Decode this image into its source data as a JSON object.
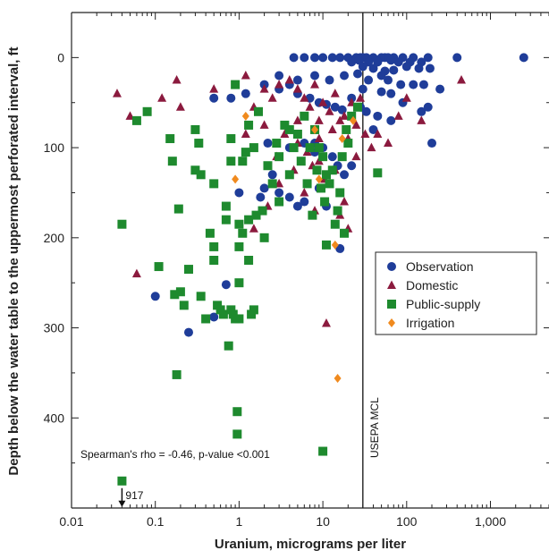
{
  "chart_data": {
    "type": "scatter",
    "xlabel": "Uranium, micrograms per liter",
    "ylabel": "Depth below the water table to the uppermost perforated interval, ft",
    "x_scale": "log",
    "xlim": [
      0.01,
      5000
    ],
    "ylim": [
      500,
      -50
    ],
    "x_ticks": [
      {
        "value": 0.01,
        "label": "0.01"
      },
      {
        "value": 0.1,
        "label": "0.1"
      },
      {
        "value": 1,
        "label": "1"
      },
      {
        "value": 10,
        "label": "10"
      },
      {
        "value": 100,
        "label": "100"
      },
      {
        "value": 1000,
        "label": "1,000"
      }
    ],
    "y_ticks": [
      {
        "value": 0,
        "label": "0"
      },
      {
        "value": 100,
        "label": "100"
      },
      {
        "value": 200,
        "label": "200"
      },
      {
        "value": 300,
        "label": "300"
      },
      {
        "value": 400,
        "label": "400"
      }
    ],
    "grid": false,
    "legend_position": "right-middle",
    "reference_line": {
      "x": 30,
      "label": "USEPA MCL"
    },
    "annotations": [
      {
        "text": "Spearman's rho = -0.46, p-value <0.001"
      },
      {
        "text": "917",
        "x": 0.04,
        "y": 470
      }
    ],
    "series": [
      {
        "name": "Observation",
        "marker": "circle",
        "color": "#1f3d99",
        "points": [
          [
            4.5,
            0
          ],
          [
            6,
            0
          ],
          [
            8,
            0
          ],
          [
            10,
            0
          ],
          [
            13,
            0
          ],
          [
            16,
            0
          ],
          [
            20,
            0
          ],
          [
            25,
            0
          ],
          [
            28,
            0
          ],
          [
            30,
            0
          ],
          [
            33,
            0
          ],
          [
            40,
            0
          ],
          [
            50,
            0
          ],
          [
            55,
            0
          ],
          [
            60,
            0
          ],
          [
            70,
            0
          ],
          [
            90,
            0
          ],
          [
            120,
            0
          ],
          [
            180,
            0
          ],
          [
            400,
            0
          ],
          [
            2500,
            0
          ],
          [
            22,
            5
          ],
          [
            27,
            3
          ],
          [
            35,
            5
          ],
          [
            45,
            5
          ],
          [
            65,
            3
          ],
          [
            80,
            5
          ],
          [
            110,
            5
          ],
          [
            150,
            5
          ],
          [
            30,
            10
          ],
          [
            40,
            12
          ],
          [
            55,
            15
          ],
          [
            70,
            14
          ],
          [
            100,
            10
          ],
          [
            140,
            12
          ],
          [
            190,
            12
          ],
          [
            250,
            35
          ],
          [
            3,
            20
          ],
          [
            5,
            25
          ],
          [
            8,
            20
          ],
          [
            12,
            25
          ],
          [
            18,
            20
          ],
          [
            26,
            18
          ],
          [
            35,
            25
          ],
          [
            50,
            20
          ],
          [
            60,
            25
          ],
          [
            85,
            30
          ],
          [
            120,
            30
          ],
          [
            160,
            30
          ],
          [
            4,
            30
          ],
          [
            30,
            35
          ],
          [
            50,
            38
          ],
          [
            65,
            40
          ],
          [
            2,
            30
          ],
          [
            3,
            35
          ],
          [
            5,
            40
          ],
          [
            7,
            45
          ],
          [
            9,
            50
          ],
          [
            11,
            52
          ],
          [
            14,
            55
          ],
          [
            17,
            58
          ],
          [
            22,
            45
          ],
          [
            28,
            55
          ],
          [
            33,
            60
          ],
          [
            45,
            65
          ],
          [
            65,
            70
          ],
          [
            90,
            50
          ],
          [
            150,
            60
          ],
          [
            2.2,
            95
          ],
          [
            4,
            100
          ],
          [
            6,
            95
          ],
          [
            8,
            105
          ],
          [
            10,
            100
          ],
          [
            13,
            110
          ],
          [
            15,
            120
          ],
          [
            18,
            130
          ],
          [
            22,
            120
          ],
          [
            200,
            95
          ],
          [
            180,
            55
          ],
          [
            40,
            80
          ],
          [
            2,
            145
          ],
          [
            3,
            150
          ],
          [
            4,
            155
          ],
          [
            5,
            165
          ],
          [
            6,
            160
          ],
          [
            9,
            145
          ],
          [
            11,
            165
          ],
          [
            2.5,
            130
          ],
          [
            1.8,
            155
          ],
          [
            1,
            150
          ],
          [
            0.5,
            45
          ],
          [
            0.8,
            45
          ],
          [
            1.2,
            40
          ],
          [
            0.1,
            265
          ],
          [
            0.25,
            305
          ],
          [
            0.7,
            252
          ],
          [
            0.5,
            288
          ],
          [
            8,
            95
          ],
          [
            16,
            212
          ]
        ]
      },
      {
        "name": "Domestic",
        "marker": "triangle",
        "color": "#8b1a3e",
        "points": [
          [
            0.035,
            40
          ],
          [
            0.05,
            65
          ],
          [
            0.06,
            240
          ],
          [
            0.12,
            45
          ],
          [
            0.18,
            25
          ],
          [
            0.2,
            55
          ],
          [
            0.5,
            35
          ],
          [
            1.2,
            20
          ],
          [
            1.5,
            55
          ],
          [
            2,
            35
          ],
          [
            2.5,
            45
          ],
          [
            3,
            30
          ],
          [
            4,
            25
          ],
          [
            5,
            35
          ],
          [
            6,
            45
          ],
          [
            7,
            55
          ],
          [
            8,
            30
          ],
          [
            9,
            70
          ],
          [
            10,
            50
          ],
          [
            12,
            60
          ],
          [
            14,
            40
          ],
          [
            16,
            70
          ],
          [
            18,
            65
          ],
          [
            20,
            90
          ],
          [
            22,
            50
          ],
          [
            25,
            75
          ],
          [
            28,
            45
          ],
          [
            32,
            85
          ],
          [
            38,
            100
          ],
          [
            45,
            85
          ],
          [
            60,
            95
          ],
          [
            80,
            65
          ],
          [
            100,
            45
          ],
          [
            150,
            70
          ],
          [
            450,
            25
          ],
          [
            2,
            75
          ],
          [
            3.5,
            85
          ],
          [
            5,
            95
          ],
          [
            6.5,
            105
          ],
          [
            7.5,
            120
          ],
          [
            9,
            115
          ],
          [
            10.5,
            135
          ],
          [
            12,
            140
          ],
          [
            14,
            125
          ],
          [
            16,
            175
          ],
          [
            18,
            160
          ],
          [
            20,
            190
          ],
          [
            1.5,
            190
          ],
          [
            2.2,
            165
          ],
          [
            11,
            295
          ],
          [
            3,
            140
          ],
          [
            4.5,
            125
          ],
          [
            6,
            150
          ],
          [
            8,
            170
          ],
          [
            1.2,
            85
          ],
          [
            2.8,
            110
          ],
          [
            13,
            80
          ],
          [
            25,
            110
          ],
          [
            5,
            70
          ],
          [
            9,
            90
          ]
        ]
      },
      {
        "name": "Public-supply",
        "marker": "square",
        "color": "#1e8a2e",
        "points": [
          [
            0.04,
            185
          ],
          [
            0.06,
            70
          ],
          [
            0.08,
            60
          ],
          [
            0.04,
            470
          ],
          [
            0.11,
            232
          ],
          [
            0.15,
            90
          ],
          [
            0.16,
            115
          ],
          [
            0.17,
            263
          ],
          [
            0.18,
            352
          ],
          [
            0.19,
            168
          ],
          [
            0.2,
            260
          ],
          [
            0.22,
            275
          ],
          [
            0.25,
            235
          ],
          [
            0.3,
            80
          ],
          [
            0.3,
            125
          ],
          [
            0.33,
            95
          ],
          [
            0.35,
            265
          ],
          [
            0.4,
            290
          ],
          [
            0.45,
            195
          ],
          [
            0.5,
            210
          ],
          [
            0.5,
            140
          ],
          [
            0.5,
            225
          ],
          [
            0.55,
            275
          ],
          [
            0.6,
            280
          ],
          [
            0.65,
            285
          ],
          [
            0.7,
            165
          ],
          [
            0.7,
            180
          ],
          [
            0.75,
            320
          ],
          [
            0.8,
            115
          ],
          [
            0.8,
            90
          ],
          [
            0.8,
            280
          ],
          [
            0.85,
            285
          ],
          [
            0.9,
            30
          ],
          [
            0.9,
            290
          ],
          [
            0.95,
            393
          ],
          [
            0.95,
            418
          ],
          [
            1,
            210
          ],
          [
            1,
            250
          ],
          [
            1,
            185
          ],
          [
            1,
            290
          ],
          [
            1.1,
            115
          ],
          [
            1.1,
            195
          ],
          [
            1.2,
            105
          ],
          [
            1.3,
            180
          ],
          [
            1.3,
            225
          ],
          [
            1.3,
            75
          ],
          [
            1.4,
            285
          ],
          [
            1.5,
            100
          ],
          [
            1.5,
            280
          ],
          [
            1.6,
            175
          ],
          [
            1.7,
            60
          ],
          [
            1.9,
            170
          ],
          [
            2,
            200
          ],
          [
            2.2,
            120
          ],
          [
            2.5,
            140
          ],
          [
            3,
            110
          ],
          [
            3,
            160
          ],
          [
            3.5,
            75
          ],
          [
            4,
            130
          ],
          [
            4.5,
            100
          ],
          [
            5,
            85
          ],
          [
            5.5,
            115
          ],
          [
            6,
            65
          ],
          [
            6.5,
            140
          ],
          [
            7,
            100
          ],
          [
            7.5,
            175
          ],
          [
            8,
            80
          ],
          [
            8.5,
            125
          ],
          [
            9,
            100
          ],
          [
            9.5,
            145
          ],
          [
            10,
            110
          ],
          [
            10.5,
            160
          ],
          [
            11,
            130
          ],
          [
            12,
            140
          ],
          [
            13,
            125
          ],
          [
            14,
            185
          ],
          [
            15,
            170
          ],
          [
            16,
            150
          ],
          [
            17,
            110
          ],
          [
            18,
            195
          ],
          [
            19,
            80
          ],
          [
            20,
            95
          ],
          [
            22,
            65
          ],
          [
            26,
            55
          ],
          [
            11,
            208
          ],
          [
            10,
            437
          ],
          [
            45,
            128
          ],
          [
            0.35,
            130
          ],
          [
            2.8,
            95
          ],
          [
            4,
            80
          ]
        ]
      },
      {
        "name": "Irrigation",
        "marker": "diamond",
        "color": "#f08a1e",
        "points": [
          [
            1.2,
            65
          ],
          [
            0.9,
            135
          ],
          [
            8,
            80
          ],
          [
            9,
            135
          ],
          [
            14,
            208
          ],
          [
            15,
            356
          ],
          [
            23,
            70
          ],
          [
            17,
            90
          ]
        ]
      }
    ]
  }
}
